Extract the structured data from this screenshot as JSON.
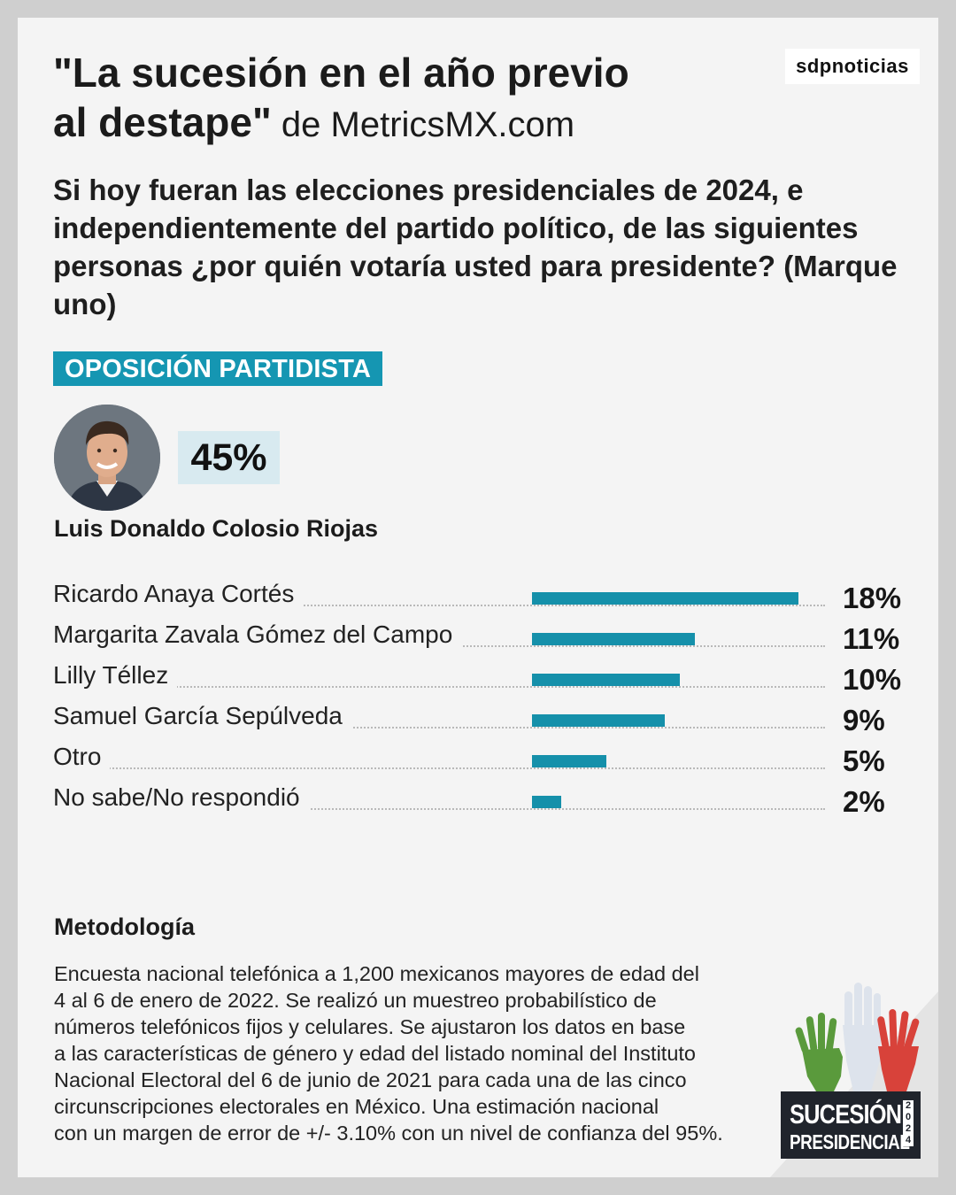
{
  "brand": "sdpnoticias",
  "header": {
    "title_line1": "\"La sucesión en el año previo",
    "title_line2": "al destape\"",
    "title_source": " de MetricsMX.com"
  },
  "question": "Si hoy fueran las elecciones presidenciales de 2024, e independientemente del partido político, de las siguientes personas ¿por quién votaría usted para presidente? (Marque uno)",
  "section_tag": "OPOSICIÓN PARTIDISTA",
  "leader": {
    "name": "Luis Donaldo Colosio Riojas",
    "value_label": "45%",
    "value": 45
  },
  "chart_data": {
    "type": "bar",
    "orientation": "horizontal",
    "categories": [
      "Ricardo Anaya Cortés",
      "Margarita Zavala Gómez del Campo",
      "Lilly Téllez",
      "Samuel García Sepúlveda",
      "Otro",
      "No sabe/No respondió"
    ],
    "values": [
      18,
      11,
      10,
      9,
      5,
      2
    ],
    "value_labels": [
      "18%",
      "11%",
      "10%",
      "9%",
      "5%",
      "2%"
    ],
    "bar_color": "#1590aa"
  },
  "methodology": {
    "title": "Metodología",
    "lines": [
      "Encuesta nacional telefónica a 1,200 mexicanos mayores de edad del",
      "4 al 6 de enero de 2022. Se realizó un muestreo probabilístico de",
      "números telefónicos fijos y celulares. Se ajustaron los datos en base",
      "a las características de género y edad del listado nominal del Instituto",
      "Nacional Electoral del 6 de junio de 2021 para cada una de las cinco",
      "circunscripciones electorales en México. Una estimación nacional",
      "con un margen de error de +/- 3.10% con un nivel de confianza del 95%."
    ]
  },
  "logo": {
    "line1": "SUCESIÓN",
    "line2": "PRESIDENCIAL",
    "year": "2024"
  },
  "colors": {
    "accent": "#1596b2",
    "value_box": "#d8eaf0",
    "background": "#f4f4f4"
  }
}
